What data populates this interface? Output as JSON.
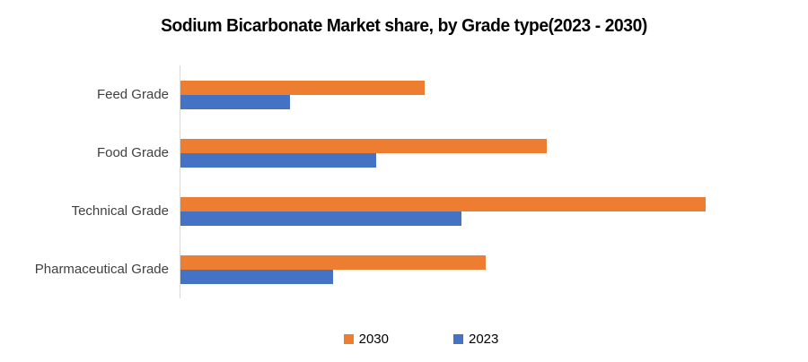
{
  "title": "Sodium Bicarbonate Market share, by Grade type(2023 - 2030)",
  "chart_data": {
    "type": "bar",
    "orientation": "horizontal",
    "title": "Sodium Bicarbonate Market share, by Grade type(2023 - 2030)",
    "categories": [
      "Feed Grade",
      "Food Grade",
      "Technical Grade",
      "Pharmaceutical Grade"
    ],
    "series": [
      {
        "name": "2030",
        "color": "#ED7D31",
        "values": [
          40,
          60,
          86,
          50
        ]
      },
      {
        "name": "2023",
        "color": "#4472C4",
        "values": [
          18,
          32,
          46,
          25
        ]
      }
    ],
    "xlabel": "",
    "ylabel": "",
    "xlim": [
      0,
      100
    ],
    "x_axis_visible": false,
    "grid": false,
    "legend_position": "bottom-center",
    "category_order_top_to_bottom": [
      "Feed Grade",
      "Food Grade",
      "Technical Grade",
      "Pharmaceutical Grade"
    ],
    "series_order_within_group_top_to_bottom": [
      "2030",
      "2023"
    ]
  },
  "legend": {
    "items": [
      {
        "label": "2030",
        "color": "#ED7D31"
      },
      {
        "label": "2023",
        "color": "#4472C4"
      }
    ]
  },
  "colors": {
    "series_2030": "#ED7D31",
    "series_2023": "#4472C4",
    "axis_line": "#d9d9d9",
    "title_text": "#000000",
    "category_text": "#404040",
    "background": "#ffffff"
  }
}
